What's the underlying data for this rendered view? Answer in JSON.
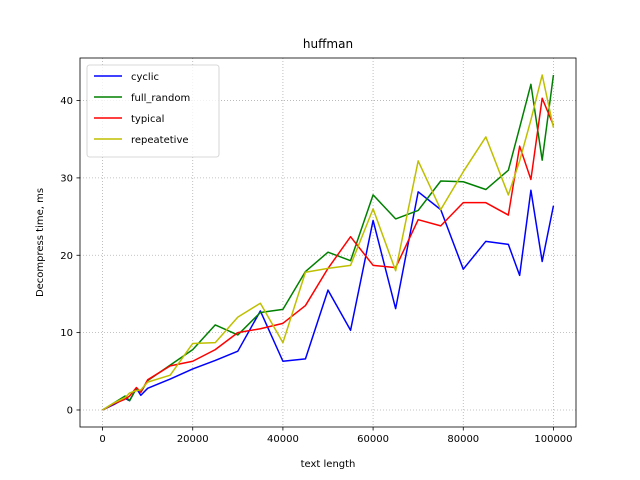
{
  "chart_data": {
    "type": "line",
    "title": "huffman",
    "xlabel": "text length",
    "ylabel": "Decompress time, ms",
    "xlim": [
      -5000,
      105000
    ],
    "ylim": [
      -2.2,
      45.5
    ],
    "xticks": [
      0,
      20000,
      40000,
      60000,
      80000,
      100000
    ],
    "yticks": [
      0,
      10,
      20,
      30,
      40
    ],
    "grid": true,
    "legend_position": "top-left",
    "series": [
      {
        "name": "cyclic",
        "color": "#0000ff",
        "x": [
          0,
          2500,
          5000,
          6000,
          7500,
          8500,
          10000,
          15000,
          20000,
          25000,
          30000,
          35000,
          40000,
          45000,
          50000,
          55000,
          60000,
          65000,
          70000,
          75000,
          80000,
          85000,
          90000,
          92500,
          95000,
          97500,
          100000
        ],
        "y": [
          0,
          0.7,
          1.5,
          1.2,
          2.8,
          1.9,
          2.8,
          4.0,
          5.3,
          6.4,
          7.6,
          12.8,
          6.3,
          6.6,
          15.5,
          10.3,
          24.5,
          13.1,
          28.2,
          25.9,
          18.2,
          21.8,
          21.4,
          17.4,
          28.4,
          19.2,
          26.4
        ]
      },
      {
        "name": "full_random",
        "color": "#008000",
        "x": [
          0,
          2500,
          5000,
          6000,
          7500,
          8500,
          10000,
          15000,
          20000,
          25000,
          30000,
          35000,
          40000,
          45000,
          50000,
          55000,
          60000,
          65000,
          70000,
          75000,
          80000,
          85000,
          90000,
          92500,
          95000,
          97500,
          100000
        ],
        "y": [
          0,
          0.9,
          1.8,
          1.2,
          2.8,
          2.3,
          3.8,
          5.8,
          7.8,
          11.0,
          9.7,
          12.6,
          13.0,
          17.9,
          20.4,
          19.3,
          27.8,
          24.7,
          25.8,
          29.6,
          29.5,
          28.5,
          31.0,
          36.5,
          42.1,
          32.3,
          43.3
        ]
      },
      {
        "name": "typical",
        "color": "#ff0000",
        "x": [
          0,
          2500,
          5000,
          6000,
          7500,
          8500,
          10000,
          15000,
          20000,
          25000,
          30000,
          35000,
          40000,
          45000,
          50000,
          55000,
          60000,
          65000,
          70000,
          75000,
          80000,
          85000,
          90000,
          92500,
          95000,
          97500,
          100000
        ],
        "y": [
          0,
          0.8,
          1.4,
          1.8,
          2.9,
          2.3,
          3.9,
          5.7,
          6.3,
          7.8,
          10.0,
          10.5,
          11.2,
          13.5,
          18.3,
          22.4,
          18.7,
          18.4,
          24.6,
          23.8,
          26.8,
          26.8,
          25.2,
          34.1,
          29.8,
          40.3,
          36.8
        ]
      },
      {
        "name": "repeatetive",
        "color": "#bfbf00",
        "x": [
          0,
          2500,
          5000,
          6000,
          7500,
          8500,
          10000,
          15000,
          20000,
          25000,
          30000,
          35000,
          40000,
          45000,
          50000,
          55000,
          60000,
          65000,
          70000,
          75000,
          80000,
          85000,
          90000,
          92500,
          95000,
          97500,
          100000
        ],
        "y": [
          0,
          0.9,
          1.6,
          2.2,
          2.5,
          2.6,
          3.6,
          4.5,
          8.6,
          8.7,
          12.0,
          13.8,
          8.7,
          17.8,
          18.3,
          18.7,
          26.0,
          18.0,
          32.2,
          25.9,
          30.8,
          35.3,
          27.8,
          32.2,
          37.5,
          43.3,
          36.5
        ]
      }
    ]
  }
}
